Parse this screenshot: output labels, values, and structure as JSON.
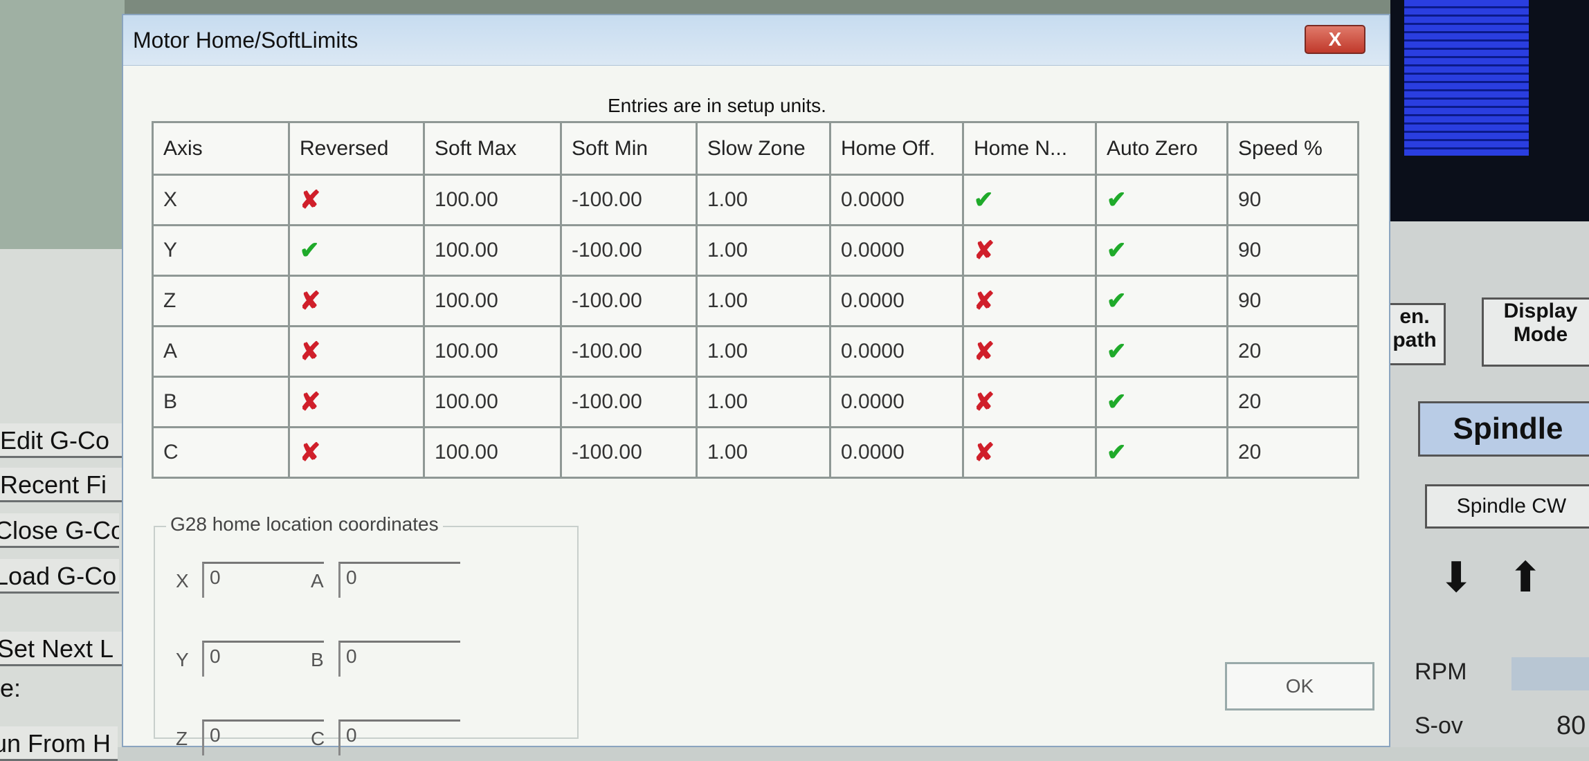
{
  "background": {
    "left_menu": [
      "Edit G-Co",
      "Recent Fi",
      "Close G-Co",
      "Load G-Co",
      "Set Next L",
      "e:",
      "un From H"
    ],
    "right": {
      "gen_path": "en. path",
      "display_mode": "Display Mode",
      "spindle": "Spindle",
      "spindle_cw": "Spindle CW",
      "rpm": "RPM",
      "sov": "S-ov",
      "sov_value": "80"
    }
  },
  "dialog": {
    "title": "Motor Home/SoftLimits",
    "close_label": "X",
    "note": "Entries are in setup units.",
    "columns": [
      "Axis",
      "Reversed",
      "Soft Max",
      "Soft Min",
      "Slow Zone",
      "Home Off.",
      "Home N...",
      "Auto Zero",
      "Speed %"
    ],
    "rows": [
      {
        "axis": "X",
        "reversed": false,
        "soft_max": "100.00",
        "soft_min": "-100.00",
        "slow_zone": "1.00",
        "home_off": "0.0000",
        "home_neg": true,
        "auto_zero": true,
        "speed": "90"
      },
      {
        "axis": "Y",
        "reversed": true,
        "soft_max": "100.00",
        "soft_min": "-100.00",
        "slow_zone": "1.00",
        "home_off": "0.0000",
        "home_neg": false,
        "auto_zero": true,
        "speed": "90"
      },
      {
        "axis": "Z",
        "reversed": false,
        "soft_max": "100.00",
        "soft_min": "-100.00",
        "slow_zone": "1.00",
        "home_off": "0.0000",
        "home_neg": false,
        "auto_zero": true,
        "speed": "90"
      },
      {
        "axis": "A",
        "reversed": false,
        "soft_max": "100.00",
        "soft_min": "-100.00",
        "slow_zone": "1.00",
        "home_off": "0.0000",
        "home_neg": false,
        "auto_zero": true,
        "speed": "20"
      },
      {
        "axis": "B",
        "reversed": false,
        "soft_max": "100.00",
        "soft_min": "-100.00",
        "slow_zone": "1.00",
        "home_off": "0.0000",
        "home_neg": false,
        "auto_zero": true,
        "speed": "20"
      },
      {
        "axis": "C",
        "reversed": false,
        "soft_max": "100.00",
        "soft_min": "-100.00",
        "slow_zone": "1.00",
        "home_off": "0.0000",
        "home_neg": false,
        "auto_zero": true,
        "speed": "20"
      }
    ],
    "icons": {
      "true": "green-check-icon",
      "false": "red-x-icon"
    },
    "colors": {
      "check": "#1faa2a",
      "cross": "#d01f2a"
    },
    "g28": {
      "label": "G28 home location coordinates",
      "fields": [
        {
          "label": "X",
          "value": "0"
        },
        {
          "label": "Y",
          "value": "0"
        },
        {
          "label": "Z",
          "value": "0"
        },
        {
          "label": "A",
          "value": "0"
        },
        {
          "label": "B",
          "value": "0"
        },
        {
          "label": "C",
          "value": "0"
        }
      ]
    },
    "ok_label": "OK"
  }
}
